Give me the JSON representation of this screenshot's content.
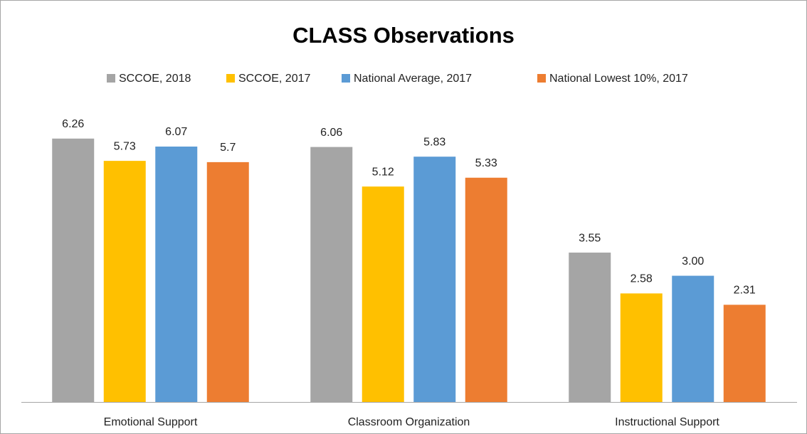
{
  "chart_data": {
    "type": "bar",
    "title": "CLASS Observations",
    "categories": [
      "Emotional Support",
      "Classroom Organization",
      "Instructional Support"
    ],
    "series": [
      {
        "name": "SCCOE, 2018",
        "color": "#a5a5a5",
        "values": [
          6.26,
          6.06,
          3.55
        ]
      },
      {
        "name": "SCCOE, 2017",
        "color": "#ffc000",
        "values": [
          5.73,
          5.12,
          2.58
        ]
      },
      {
        "name": "National Average, 2017",
        "color": "#5b9bd5",
        "values": [
          6.07,
          5.83,
          3.0
        ],
        "value_labels": [
          "6.07",
          "5.83",
          "3.00"
        ]
      },
      {
        "name": "National Lowest 10%, 2017",
        "color": "#ed7d31",
        "values": [
          5.7,
          5.33,
          2.31
        ]
      }
    ],
    "ylim": [
      0,
      7
    ],
    "legend": "top"
  }
}
